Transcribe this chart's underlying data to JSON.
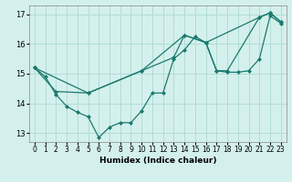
{
  "xlabel": "Humidex (Indice chaleur)",
  "ylabel": "",
  "bg_color": "#d4f0ec",
  "grid_color": "#b0ddd8",
  "line_color": "#1a7a6e",
  "xlim": [
    -0.5,
    23.5
  ],
  "ylim": [
    12.7,
    17.3
  ],
  "yticks": [
    13,
    14,
    15,
    16,
    17
  ],
  "xticks": [
    0,
    1,
    2,
    3,
    4,
    5,
    6,
    7,
    8,
    9,
    10,
    11,
    12,
    13,
    14,
    15,
    16,
    17,
    18,
    19,
    20,
    21,
    22,
    23
  ],
  "lines": [
    {
      "x": [
        0,
        1,
        2,
        3,
        4,
        5,
        6,
        7,
        8,
        9,
        10,
        11,
        12,
        13,
        14,
        15,
        16,
        17,
        18,
        19,
        20,
        21,
        22,
        23
      ],
      "y": [
        15.2,
        14.9,
        14.3,
        13.9,
        13.7,
        13.55,
        12.85,
        13.2,
        13.35,
        13.35,
        13.75,
        14.35,
        14.35,
        15.5,
        15.8,
        16.25,
        16.05,
        15.1,
        15.05,
        15.05,
        15.1,
        15.5,
        16.95,
        16.7
      ]
    },
    {
      "x": [
        0,
        2,
        5,
        10,
        13,
        14,
        16,
        17,
        18,
        21,
        22,
        23
      ],
      "y": [
        15.2,
        14.4,
        14.35,
        15.1,
        15.55,
        16.3,
        16.05,
        15.1,
        15.1,
        16.9,
        17.05,
        16.75
      ]
    },
    {
      "x": [
        0,
        5,
        10,
        14,
        16,
        21,
        22,
        23
      ],
      "y": [
        15.2,
        14.35,
        15.1,
        16.3,
        16.05,
        16.9,
        17.05,
        16.75
      ]
    }
  ]
}
